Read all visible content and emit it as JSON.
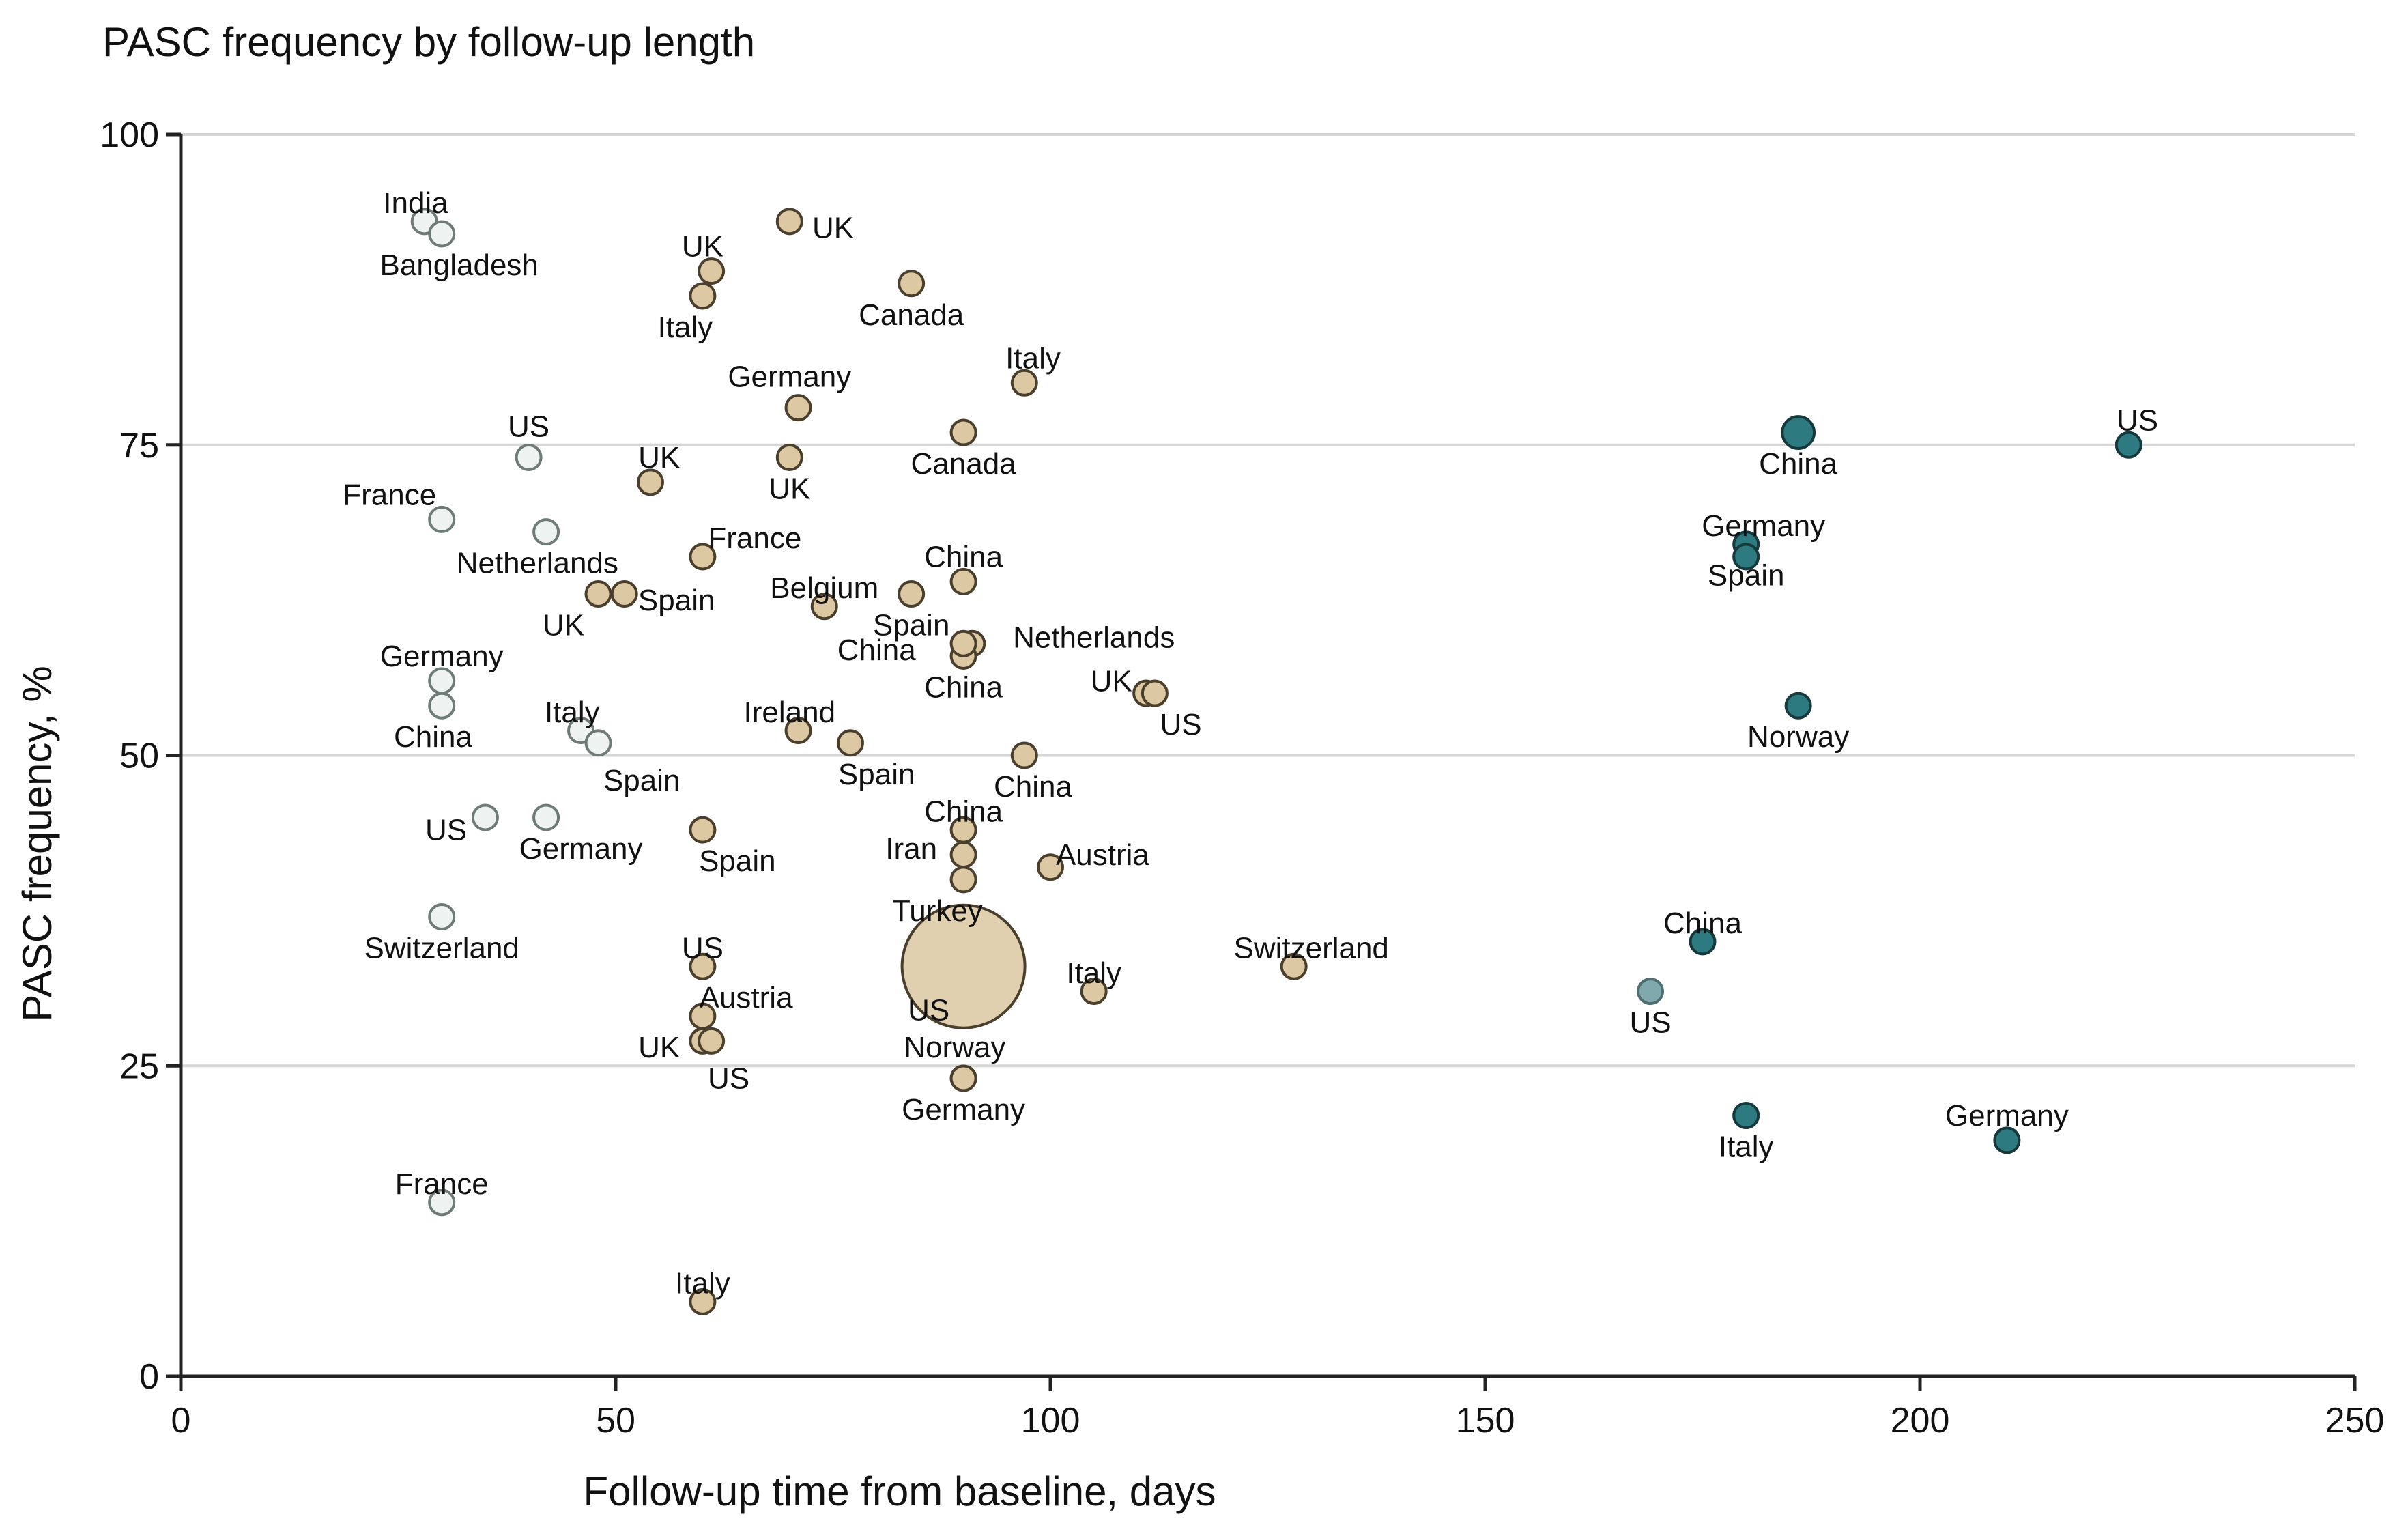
{
  "chart_data": {
    "type": "scatter",
    "title": "PASC frequency by follow-up length",
    "xlabel": "Follow-up time from baseline, days",
    "ylabel": "PASC frequency, %",
    "xlim": [
      0,
      250
    ],
    "ylim": [
      0,
      100
    ],
    "xticks": [
      0,
      50,
      100,
      150,
      200,
      250
    ],
    "yticks": [
      0,
      25,
      50,
      75,
      100
    ],
    "grid": "horizontal",
    "groups": {
      "short": {
        "fill": "#eef2f1",
        "stroke": "#6f7b78"
      },
      "mid": {
        "fill": "#dcc8a2",
        "stroke": "#4a3f2c"
      },
      "long": {
        "fill": "#2d7b80",
        "stroke": "#16393c"
      },
      "long_light": {
        "fill": "#7fa9ad",
        "stroke": "#4d6f72"
      }
    },
    "points": [
      {
        "label": "India",
        "x": 28,
        "y": 93,
        "group": "short",
        "size": 1,
        "lx": 27,
        "ly": 94.5
      },
      {
        "label": "Bangladesh",
        "x": 30,
        "y": 92,
        "group": "short",
        "size": 1,
        "lx": 32,
        "ly": 89.5
      },
      {
        "label": "US",
        "x": 40,
        "y": 74,
        "group": "short",
        "size": 1,
        "lx": 40,
        "ly": 76.5
      },
      {
        "label": "France",
        "x": 30,
        "y": 69,
        "group": "short",
        "size": 1,
        "lx": 24,
        "ly": 71
      },
      {
        "label": "Netherlands",
        "x": 42,
        "y": 68,
        "group": "short",
        "size": 1,
        "lx": 41,
        "ly": 65.5
      },
      {
        "label": "Germany",
        "x": 30,
        "y": 56,
        "group": "short",
        "size": 1,
        "lx": 30,
        "ly": 58
      },
      {
        "label": "China",
        "x": 30,
        "y": 54,
        "group": "short",
        "size": 1,
        "lx": 29,
        "ly": 51.5
      },
      {
        "label": "Italy",
        "x": 46,
        "y": 52,
        "group": "short",
        "size": 1,
        "lx": 45,
        "ly": 53.5
      },
      {
        "label": "Spain",
        "x": 48,
        "y": 51,
        "group": "short",
        "size": 1,
        "lx": 53,
        "ly": 48
      },
      {
        "label": "US",
        "x": 35,
        "y": 45,
        "group": "short",
        "size": 1,
        "lx": 30.5,
        "ly": 44
      },
      {
        "label": "Germany",
        "x": 42,
        "y": 45,
        "group": "short",
        "size": 1,
        "lx": 46,
        "ly": 42.5
      },
      {
        "label": "Switzerland",
        "x": 30,
        "y": 37,
        "group": "short",
        "size": 1,
        "lx": 30,
        "ly": 34.5
      },
      {
        "label": "France",
        "x": 30,
        "y": 14,
        "group": "short",
        "size": 1,
        "lx": 30,
        "ly": 15.5
      },
      {
        "label": "UK",
        "x": 70,
        "y": 93,
        "group": "mid",
        "size": 1,
        "lx": 75,
        "ly": 92.5
      },
      {
        "label": "UK",
        "x": 61,
        "y": 89,
        "group": "mid",
        "size": 1,
        "lx": 60,
        "ly": 91
      },
      {
        "label": "Italy",
        "x": 60,
        "y": 87,
        "group": "mid",
        "size": 1,
        "lx": 58,
        "ly": 84.5
      },
      {
        "label": "Canada",
        "x": 84,
        "y": 88,
        "group": "mid",
        "size": 1,
        "lx": 84,
        "ly": 85.5
      },
      {
        "label": "Germany",
        "x": 71,
        "y": 78,
        "group": "mid",
        "size": 1,
        "lx": 70,
        "ly": 80.5
      },
      {
        "label": "Italy",
        "x": 97,
        "y": 80,
        "group": "mid",
        "size": 1,
        "lx": 98,
        "ly": 82
      },
      {
        "label": "UK",
        "x": 54,
        "y": 72,
        "group": "mid",
        "size": 1,
        "lx": 55,
        "ly": 74
      },
      {
        "label": "UK",
        "x": 70,
        "y": 74,
        "group": "mid",
        "size": 1,
        "lx": 70,
        "ly": 71.5
      },
      {
        "label": "Canada",
        "x": 90,
        "y": 76,
        "group": "mid",
        "size": 1,
        "lx": 90,
        "ly": 73.5
      },
      {
        "label": "France",
        "x": 60,
        "y": 66,
        "group": "mid",
        "size": 1,
        "lx": 66,
        "ly": 67.5
      },
      {
        "label": "UK",
        "x": 48,
        "y": 63,
        "group": "mid",
        "size": 1,
        "lx": 44,
        "ly": 60.5
      },
      {
        "label": "Spain",
        "x": 51,
        "y": 63,
        "group": "mid",
        "size": 1,
        "lx": 57,
        "ly": 62.5
      },
      {
        "label": "Belgium",
        "x": 74,
        "y": 62,
        "group": "mid",
        "size": 1,
        "lx": 74,
        "ly": 63.5
      },
      {
        "label": "Spain",
        "x": 84,
        "y": 63,
        "group": "mid",
        "size": 1,
        "lx": 84,
        "ly": 60.5
      },
      {
        "label": "China",
        "x": 90,
        "y": 64,
        "group": "mid",
        "size": 1,
        "lx": 90,
        "ly": 66
      },
      {
        "label": "Netherlands",
        "x": 91,
        "y": 59,
        "group": "mid",
        "size": 1,
        "lx": 105,
        "ly": 59.5
      },
      {
        "label": "China",
        "x": 90,
        "y": 58,
        "group": "mid",
        "size": 1,
        "lx": 80,
        "ly": 58.5
      },
      {
        "label": "China",
        "x": 90,
        "y": 59,
        "group": "mid",
        "size": 1,
        "lx": 90,
        "ly": 55.5
      },
      {
        "label": "UK",
        "x": 111,
        "y": 55,
        "group": "mid",
        "size": 1,
        "lx": 107,
        "ly": 56
      },
      {
        "label": "US",
        "x": 112,
        "y": 55,
        "group": "mid",
        "size": 1,
        "lx": 115,
        "ly": 52.5
      },
      {
        "label": "Ireland",
        "x": 71,
        "y": 52,
        "group": "mid",
        "size": 1,
        "lx": 70,
        "ly": 53.5
      },
      {
        "label": "Spain",
        "x": 77,
        "y": 51,
        "group": "mid",
        "size": 1,
        "lx": 80,
        "ly": 48.5
      },
      {
        "label": "China",
        "x": 97,
        "y": 50,
        "group": "mid",
        "size": 1,
        "lx": 98,
        "ly": 47.5
      },
      {
        "label": "Spain",
        "x": 60,
        "y": 44,
        "group": "mid",
        "size": 1,
        "lx": 64,
        "ly": 41.5
      },
      {
        "label": "China",
        "x": 90,
        "y": 44,
        "group": "mid",
        "size": 1,
        "lx": 90,
        "ly": 45.5
      },
      {
        "label": "Iran",
        "x": 90,
        "y": 42,
        "group": "mid",
        "size": 1,
        "lx": 84,
        "ly": 42.5
      },
      {
        "label": "Austria",
        "x": 100,
        "y": 41,
        "group": "mid",
        "size": 1,
        "lx": 106,
        "ly": 42
      },
      {
        "label": "Turkey",
        "x": 90,
        "y": 40,
        "group": "mid",
        "size": 1,
        "lx": 87,
        "ly": 37.5
      },
      {
        "label": "US",
        "x": 90,
        "y": 33,
        "group": "mid",
        "size": 5,
        "lx": 86,
        "ly": 29.5
      },
      {
        "label": "Switzerland",
        "x": 128,
        "y": 33,
        "group": "mid",
        "size": 1,
        "lx": 130,
        "ly": 34.5
      },
      {
        "label": "Italy",
        "x": 105,
        "y": 31,
        "group": "mid",
        "size": 1,
        "lx": 105,
        "ly": 32.5
      },
      {
        "label": "US",
        "x": 60,
        "y": 33,
        "group": "mid",
        "size": 1,
        "lx": 60,
        "ly": 34.5
      },
      {
        "label": "Austria",
        "x": 60,
        "y": 29,
        "group": "mid",
        "size": 1,
        "lx": 65,
        "ly": 30.5
      },
      {
        "label": "UK",
        "x": 60,
        "y": 27,
        "group": "mid",
        "size": 1,
        "lx": 55,
        "ly": 26.5
      },
      {
        "label": "US",
        "x": 61,
        "y": 27,
        "group": "mid",
        "size": 1,
        "lx": 63,
        "ly": 24
      },
      {
        "label": "Norway",
        "x": 90,
        "y": 24,
        "group": "mid",
        "size": 1,
        "lx": 89,
        "ly": 26.5
      },
      {
        "label": "Germany",
        "x": 90,
        "y": 24,
        "group": "mid",
        "size": 1,
        "lx": 90,
        "ly": 21.5
      },
      {
        "label": "Italy",
        "x": 60,
        "y": 6,
        "group": "mid",
        "size": 1,
        "lx": 60,
        "ly": 7.5
      },
      {
        "label": "China",
        "x": 186,
        "y": 76,
        "group": "long",
        "size": 1.3,
        "lx": 186,
        "ly": 73.5
      },
      {
        "label": "US",
        "x": 224,
        "y": 75,
        "group": "long",
        "size": 1,
        "lx": 225,
        "ly": 77
      },
      {
        "label": "Germany",
        "x": 180,
        "y": 67,
        "group": "long",
        "size": 1,
        "lx": 182,
        "ly": 68.5
      },
      {
        "label": "Spain",
        "x": 180,
        "y": 66,
        "group": "long",
        "size": 1,
        "lx": 180,
        "ly": 64.5
      },
      {
        "label": "Norway",
        "x": 186,
        "y": 54,
        "group": "long",
        "size": 1,
        "lx": 186,
        "ly": 51.5
      },
      {
        "label": "China",
        "x": 175,
        "y": 35,
        "group": "long",
        "size": 1,
        "lx": 175,
        "ly": 36.5
      },
      {
        "label": "US",
        "x": 169,
        "y": 31,
        "group": "long_light",
        "size": 1,
        "lx": 169,
        "ly": 28.5
      },
      {
        "label": "Germany",
        "x": 210,
        "y": 19,
        "group": "long",
        "size": 1,
        "lx": 210,
        "ly": 21
      },
      {
        "label": "Italy",
        "x": 180,
        "y": 21,
        "group": "long",
        "size": 1,
        "lx": 180,
        "ly": 18.5
      }
    ]
  }
}
